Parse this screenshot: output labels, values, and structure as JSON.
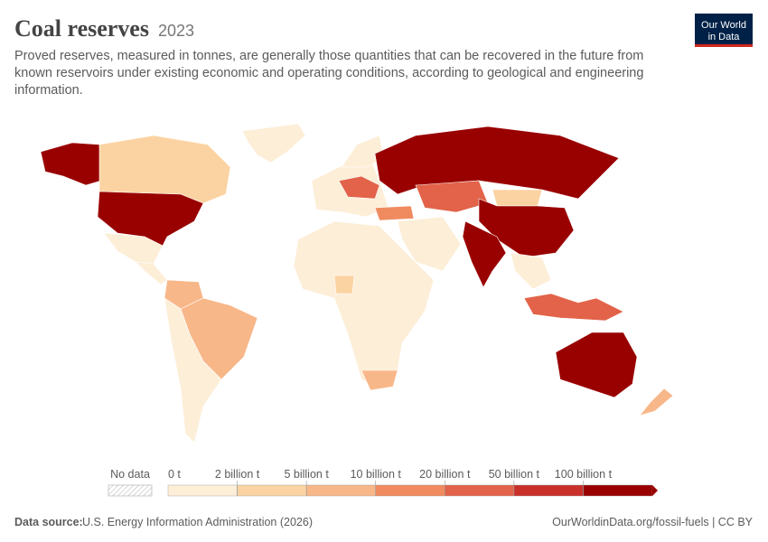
{
  "header": {
    "title": "Coal reserves",
    "year": "2023",
    "subtitle_lines": [
      "Proved reserves, measured in tonnes, are generally those quantities that can be recovered in the future from",
      "known reservoirs under existing economic and operating conditions, according to geological and engineering",
      "information."
    ]
  },
  "logo": [
    "Our World",
    "in Data"
  ],
  "legend": {
    "no_data": "No data",
    "ticks": [
      {
        "value": 0,
        "label": "0 t"
      },
      {
        "value": 2000000000,
        "label": "2 billion t"
      },
      {
        "value": 5000000000,
        "label": "5 billion t"
      },
      {
        "value": 10000000000,
        "label": "10 billion t"
      },
      {
        "value": 20000000000,
        "label": "20 billion t"
      },
      {
        "value": 50000000000,
        "label": "50 billion t"
      },
      {
        "value": 100000000000,
        "label": "100 billion t"
      }
    ],
    "colors": [
      "#fdeed8",
      "#fbd3a2",
      "#f8b789",
      "#f08b5f",
      "#e26349",
      "#c9302a",
      "#990000"
    ]
  },
  "footer": {
    "source_label": "Data source:",
    "source": "U.S. Energy Information Administration (2026)",
    "credit": "OurWorldinData.org/fossil-fuels | CC BY"
  }
}
